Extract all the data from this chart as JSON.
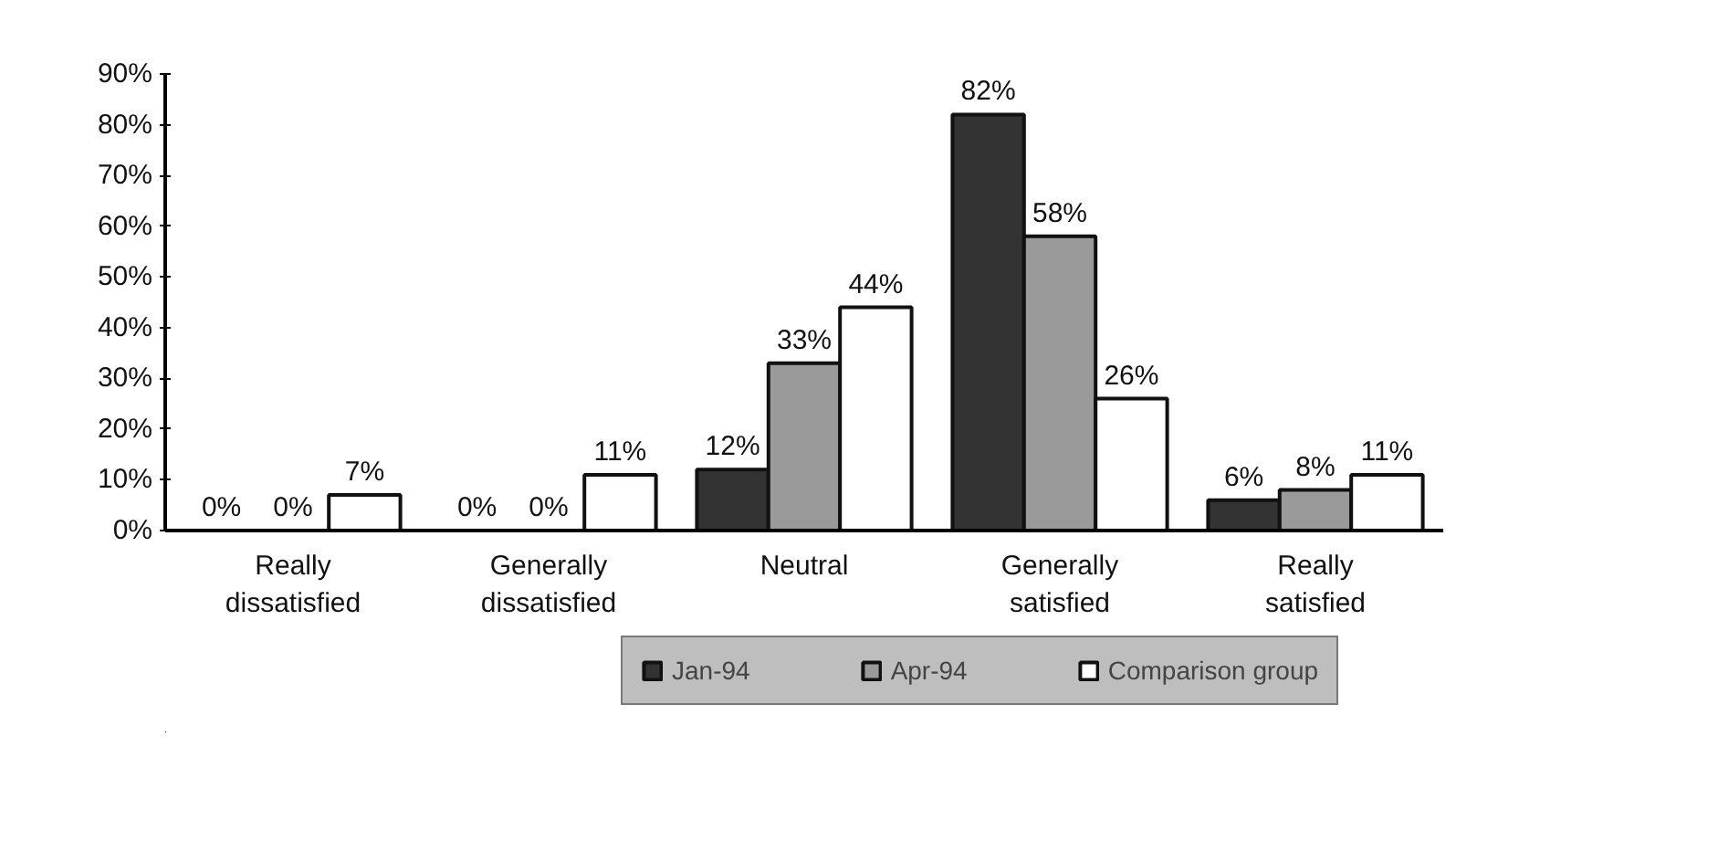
{
  "chart_data": {
    "type": "bar",
    "categories": [
      "Really dissatisfied",
      "Generally dissatisfied",
      "Neutral",
      "Generally satisfied",
      "Really satisfied"
    ],
    "series": [
      {
        "name": "Jan-94",
        "color": "#333333",
        "values": [
          0,
          0,
          12,
          82,
          6
        ],
        "value_labels": [
          "0%",
          "0%",
          "12%",
          "82%",
          "6%"
        ]
      },
      {
        "name": "Apr-94",
        "color": "#9a9a9a",
        "values": [
          0,
          0,
          33,
          58,
          8
        ],
        "value_labels": [
          "0%",
          "0%",
          "33%",
          "58%",
          "8%"
        ]
      },
      {
        "name": "Comparison group",
        "color": "#ffffff",
        "values": [
          7,
          11,
          44,
          26,
          11
        ],
        "value_labels": [
          "7%",
          "11%",
          "44%",
          "26%",
          "11%"
        ]
      }
    ],
    "ylim": [
      0,
      90
    ],
    "yticks": [
      {
        "value": 0,
        "label": "0%"
      },
      {
        "value": 10,
        "label": "10%"
      },
      {
        "value": 20,
        "label": "20%"
      },
      {
        "value": 30,
        "label": "30%"
      },
      {
        "value": 40,
        "label": "40%"
      },
      {
        "value": 50,
        "label": "50%"
      },
      {
        "value": 60,
        "label": "60%"
      },
      {
        "value": 70,
        "label": "70%"
      },
      {
        "value": 80,
        "label": "80%"
      },
      {
        "value": 90,
        "label": "90%"
      }
    ],
    "grid": false,
    "legend": "bottom"
  }
}
